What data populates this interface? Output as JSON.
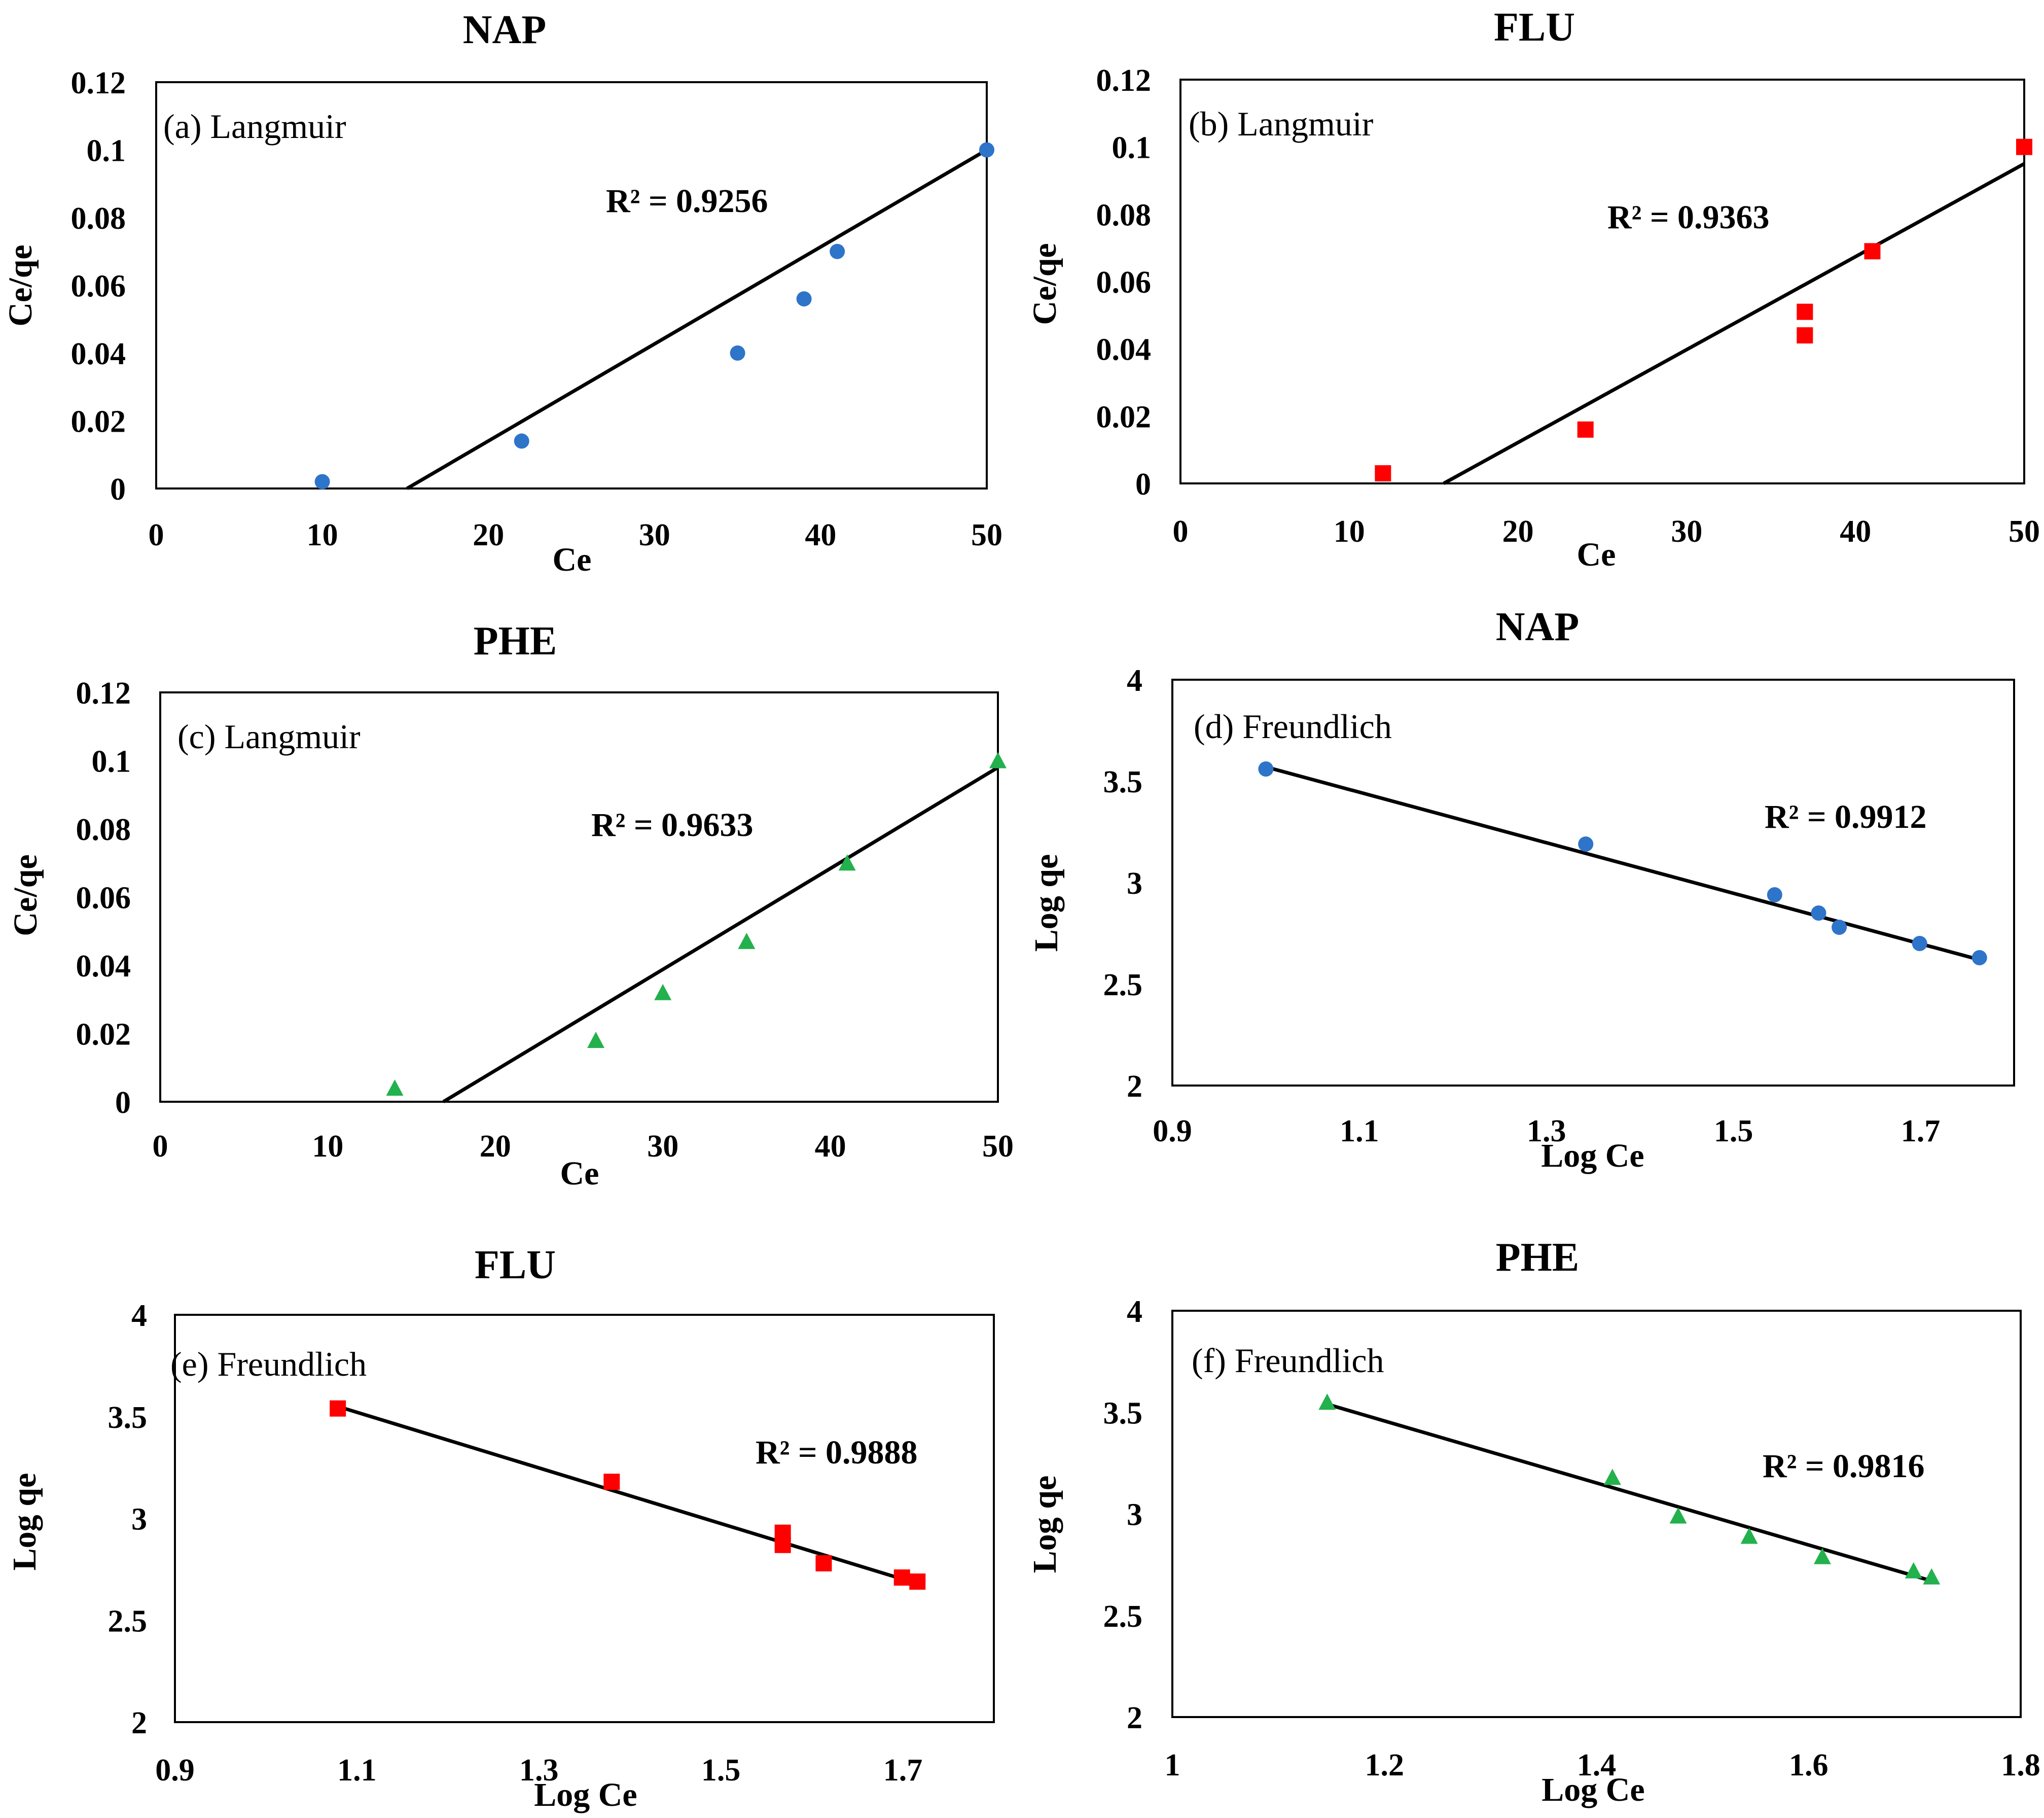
{
  "chart_data": [
    {
      "id": "a",
      "type": "scatter",
      "title": "NAP",
      "panel_label": "(a) Langmuir",
      "xlabel": "Ce",
      "ylabel": "Ce/qe",
      "xlim": [
        0,
        50
      ],
      "ylim": [
        0,
        0.12
      ],
      "xticks": [
        0,
        10,
        20,
        30,
        40,
        50
      ],
      "yticks": [
        0,
        0.02,
        0.04,
        0.06,
        0.08,
        0.1,
        0.12
      ],
      "xtick_labels": [
        "0",
        "10",
        "20",
        "30",
        "40",
        "50"
      ],
      "ytick_labels": [
        "0",
        "0.02",
        "0.04",
        "0.06",
        "0.08",
        "0.1",
        "0.12"
      ],
      "marker": "circle",
      "color": "#2e74c9",
      "series": [
        {
          "name": "NAP",
          "x": [
            10,
            22,
            35,
            39,
            41,
            50
          ],
          "y": [
            0.002,
            0.014,
            0.04,
            0.056,
            0.07,
            0.1
          ]
        }
      ],
      "trendline": {
        "x1": 15.1,
        "y1": 0,
        "x2": 50,
        "y2": 0.1
      },
      "r2": "R² = 0.9256"
    },
    {
      "id": "b",
      "type": "scatter",
      "title": "FLU",
      "panel_label": "(b) Langmuir",
      "xlabel": "Ce",
      "ylabel": "Ce/qe",
      "xlim": [
        0,
        50
      ],
      "ylim": [
        0,
        0.12
      ],
      "xticks": [
        0,
        10,
        20,
        30,
        40,
        50
      ],
      "yticks": [
        0,
        0.02,
        0.04,
        0.06,
        0.08,
        0.1,
        0.12
      ],
      "xtick_labels": [
        "0",
        "10",
        "20",
        "30",
        "40",
        "50"
      ],
      "ytick_labels": [
        "0",
        "0.02",
        "0.04",
        "0.06",
        "0.08",
        "0.1",
        "0.12"
      ],
      "marker": "square",
      "color": "#ff0000",
      "series": [
        {
          "name": "FLU",
          "x": [
            12,
            24,
            37,
            37,
            41,
            50
          ],
          "y": [
            0.003,
            0.016,
            0.044,
            0.051,
            0.069,
            0.1
          ]
        }
      ],
      "trendline": {
        "x1": 15.6,
        "y1": 0,
        "x2": 50,
        "y2": 0.095
      },
      "r2": "R² = 0.9363"
    },
    {
      "id": "c",
      "type": "scatter",
      "title": "PHE",
      "panel_label": "(c) Langmuir",
      "xlabel": "Ce",
      "ylabel": "Ce/qe",
      "xlim": [
        0,
        50
      ],
      "ylim": [
        0,
        0.12
      ],
      "xticks": [
        0,
        10,
        20,
        30,
        40,
        50
      ],
      "yticks": [
        0,
        0.02,
        0.04,
        0.06,
        0.08,
        0.1,
        0.12
      ],
      "xtick_labels": [
        "0",
        "10",
        "20",
        "30",
        "40",
        "50"
      ],
      "ytick_labels": [
        "0",
        "0.02",
        "0.04",
        "0.06",
        "0.08",
        "0.1",
        "0.12"
      ],
      "marker": "triangle",
      "color": "#22b14c",
      "series": [
        {
          "name": "PHE",
          "x": [
            14,
            26,
            30,
            35,
            41,
            50
          ],
          "y": [
            0.004,
            0.018,
            0.032,
            0.047,
            0.07,
            0.1
          ]
        }
      ],
      "trendline": {
        "x1": 16.9,
        "y1": 0,
        "x2": 50,
        "y2": 0.098
      },
      "r2": "R² = 0.9633"
    },
    {
      "id": "d",
      "type": "scatter",
      "title": "NAP",
      "panel_label": "(d) Freundlich",
      "xlabel": "Log Ce",
      "ylabel": "Log qe",
      "xlim": [
        0.9,
        1.8
      ],
      "ylim": [
        2,
        4
      ],
      "xticks": [
        0.9,
        1.1,
        1.3,
        1.5,
        1.7
      ],
      "yticks": [
        2,
        2.5,
        3,
        3.5,
        4
      ],
      "xtick_labels": [
        "0.9",
        "1.1",
        "1.3",
        "1.5",
        "1.7"
      ],
      "ytick_labels": [
        "2",
        "2.5",
        "3",
        "3.5",
        "4"
      ],
      "marker": "circle",
      "color": "#2e74c9",
      "series": [
        {
          "name": "NAP",
          "x": [
            1.0,
            1.342,
            1.544,
            1.591,
            1.613,
            1.699,
            1.763
          ],
          "y": [
            3.56,
            3.19,
            2.94,
            2.85,
            2.78,
            2.7,
            2.63
          ]
        }
      ],
      "trendline": {
        "x1": 1.0,
        "y1": 3.57,
        "x2": 1.763,
        "y2": 2.62
      },
      "r2": "R² = 0.9912"
    },
    {
      "id": "e",
      "type": "scatter",
      "title": "FLU",
      "panel_label": "(e) Freundlich",
      "xlabel": "Log Ce",
      "ylabel": "Log qe",
      "xlim": [
        0.9,
        1.8
      ],
      "ylim": [
        2,
        4
      ],
      "xticks": [
        0.9,
        1.1,
        1.3,
        1.5,
        1.7
      ],
      "yticks": [
        2,
        2.5,
        3,
        3.5,
        4
      ],
      "xtick_labels": [
        "0.9",
        "1.1",
        "1.3",
        "1.5",
        "1.7"
      ],
      "ytick_labels": [
        "2",
        "2.5",
        "3",
        "3.5",
        "4"
      ],
      "marker": "square",
      "color": "#ff0000",
      "series": [
        {
          "name": "FLU",
          "x": [
            1.079,
            1.38,
            1.568,
            1.568,
            1.613,
            1.699,
            1.716
          ],
          "y": [
            3.54,
            3.18,
            2.93,
            2.87,
            2.78,
            2.71,
            2.69
          ]
        }
      ],
      "trendline": {
        "x1": 1.079,
        "y1": 3.55,
        "x2": 1.716,
        "y2": 2.68
      },
      "r2": "R² = 0.9888"
    },
    {
      "id": "f",
      "type": "scatter",
      "title": "PHE",
      "panel_label": "(f) Freundlich",
      "xlabel": "Log Ce",
      "ylabel": "Log qe",
      "xlim": [
        1,
        1.8
      ],
      "ylim": [
        2,
        4
      ],
      "xticks": [
        1,
        1.2,
        1.4,
        1.6,
        1.8
      ],
      "yticks": [
        2,
        2.5,
        3,
        3.5,
        4
      ],
      "xtick_labels": [
        "1",
        "1.2",
        "1.4",
        "1.6",
        "1.8"
      ],
      "ytick_labels": [
        "2",
        "2.5",
        "3",
        "3.5",
        "4"
      ],
      "marker": "triangle",
      "color": "#22b14c",
      "series": [
        {
          "name": "PHE",
          "x": [
            1.146,
            1.415,
            1.477,
            1.544,
            1.613,
            1.699,
            1.716
          ],
          "y": [
            3.55,
            3.18,
            2.99,
            2.89,
            2.79,
            2.72,
            2.69
          ]
        }
      ],
      "trendline": {
        "x1": 1.146,
        "y1": 3.54,
        "x2": 1.716,
        "y2": 2.67
      },
      "r2": "R² = 0.9816"
    }
  ]
}
